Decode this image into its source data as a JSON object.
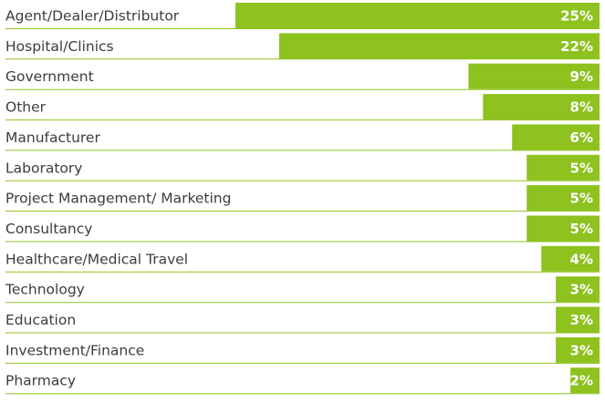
{
  "chart_data": {
    "type": "bar",
    "orientation": "horizontal",
    "bar_color": "#8dc21f",
    "separator_color": "#8dc21f",
    "label_color": "#3c3c3c",
    "value_label_color": "#ffffff",
    "grid": false,
    "legend": "none",
    "xlim": [
      0,
      25
    ],
    "categories": [
      "Agent/Dealer/Distributor",
      "Hospital/Clinics",
      "Government",
      "Other",
      "Manufacturer",
      "Laboratory",
      "Project Management/ Marketing",
      "Consultancy",
      "Healthcare/Medical Travel",
      "Technology",
      "Education",
      "Investment/Finance",
      "Pharmacy"
    ],
    "values": [
      25,
      22,
      9,
      8,
      6,
      5,
      5,
      5,
      4,
      3,
      3,
      3,
      2
    ],
    "value_labels": [
      "25%",
      "22%",
      "9%",
      "8%",
      "6%",
      "5%",
      "5%",
      "5%",
      "4%",
      "3%",
      "3%",
      "3%",
      "2%"
    ]
  }
}
